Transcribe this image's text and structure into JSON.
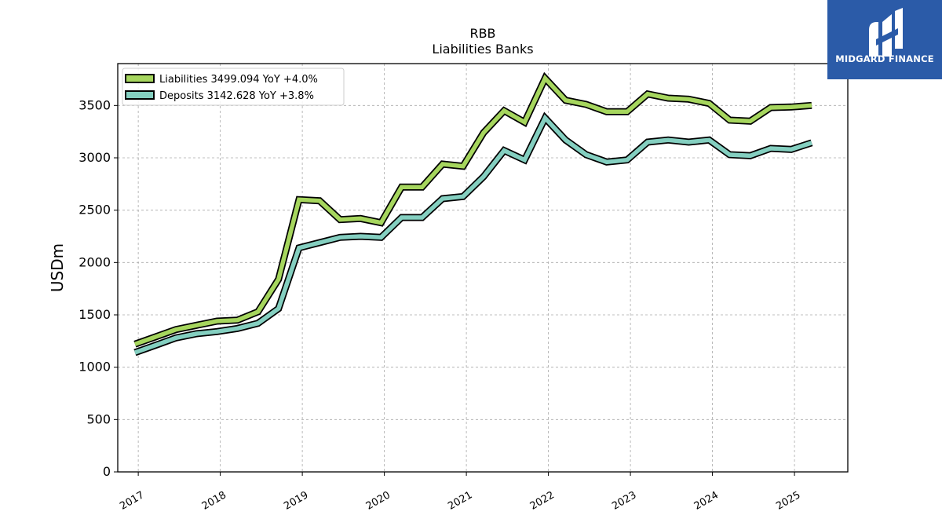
{
  "chart_data": {
    "type": "line",
    "title": "RBB",
    "subtitle": "Liabilities Banks",
    "ylabel": "USDm",
    "ylim": [
      0,
      3900
    ],
    "yticks": [
      0,
      500,
      1000,
      1500,
      2000,
      2500,
      3000,
      3500
    ],
    "xlim": [
      2016.75,
      2025.65
    ],
    "xticks": [
      "2017",
      "2018",
      "2019",
      "2020",
      "2021",
      "2022",
      "2023",
      "2024",
      "2025"
    ],
    "grid": true,
    "legend_position": "upper-left",
    "x": [
      2016.96,
      2017.21,
      2017.46,
      2017.71,
      2017.96,
      2018.21,
      2018.46,
      2018.71,
      2018.96,
      2019.21,
      2019.46,
      2019.71,
      2019.96,
      2020.21,
      2020.46,
      2020.71,
      2020.96,
      2021.21,
      2021.46,
      2021.71,
      2021.96,
      2022.21,
      2022.46,
      2022.71,
      2022.96,
      2023.21,
      2023.46,
      2023.71,
      2023.96,
      2024.21,
      2024.46,
      2024.71,
      2024.96,
      2025.21
    ],
    "series": [
      {
        "name": "Liabilities",
        "legend_label": "Liabilities  3499.094 YoY +4.0%",
        "color": "#a6d65e",
        "values": [
          1220,
          1290,
          1360,
          1400,
          1440,
          1450,
          1530,
          1840,
          2600,
          2590,
          2410,
          2420,
          2380,
          2720,
          2720,
          2940,
          2920,
          3240,
          3450,
          3340,
          3760,
          3550,
          3510,
          3440,
          3440,
          3610,
          3570,
          3560,
          3520,
          3360,
          3350,
          3480,
          3485,
          3500
        ]
      },
      {
        "name": "Deposits",
        "legend_label": "Deposits  3142.628 YoY +3.8%",
        "color": "#84cfc0",
        "values": [
          1140,
          1210,
          1280,
          1320,
          1340,
          1370,
          1420,
          1560,
          2140,
          2190,
          2240,
          2250,
          2240,
          2430,
          2430,
          2610,
          2630,
          2820,
          3070,
          2980,
          3380,
          3170,
          3030,
          2960,
          2980,
          3150,
          3170,
          3150,
          3170,
          3030,
          3020,
          3090,
          3080,
          3143
        ]
      }
    ]
  },
  "logo": {
    "text": "MIDGARD FINANCE",
    "background": "#2b5ba8"
  }
}
